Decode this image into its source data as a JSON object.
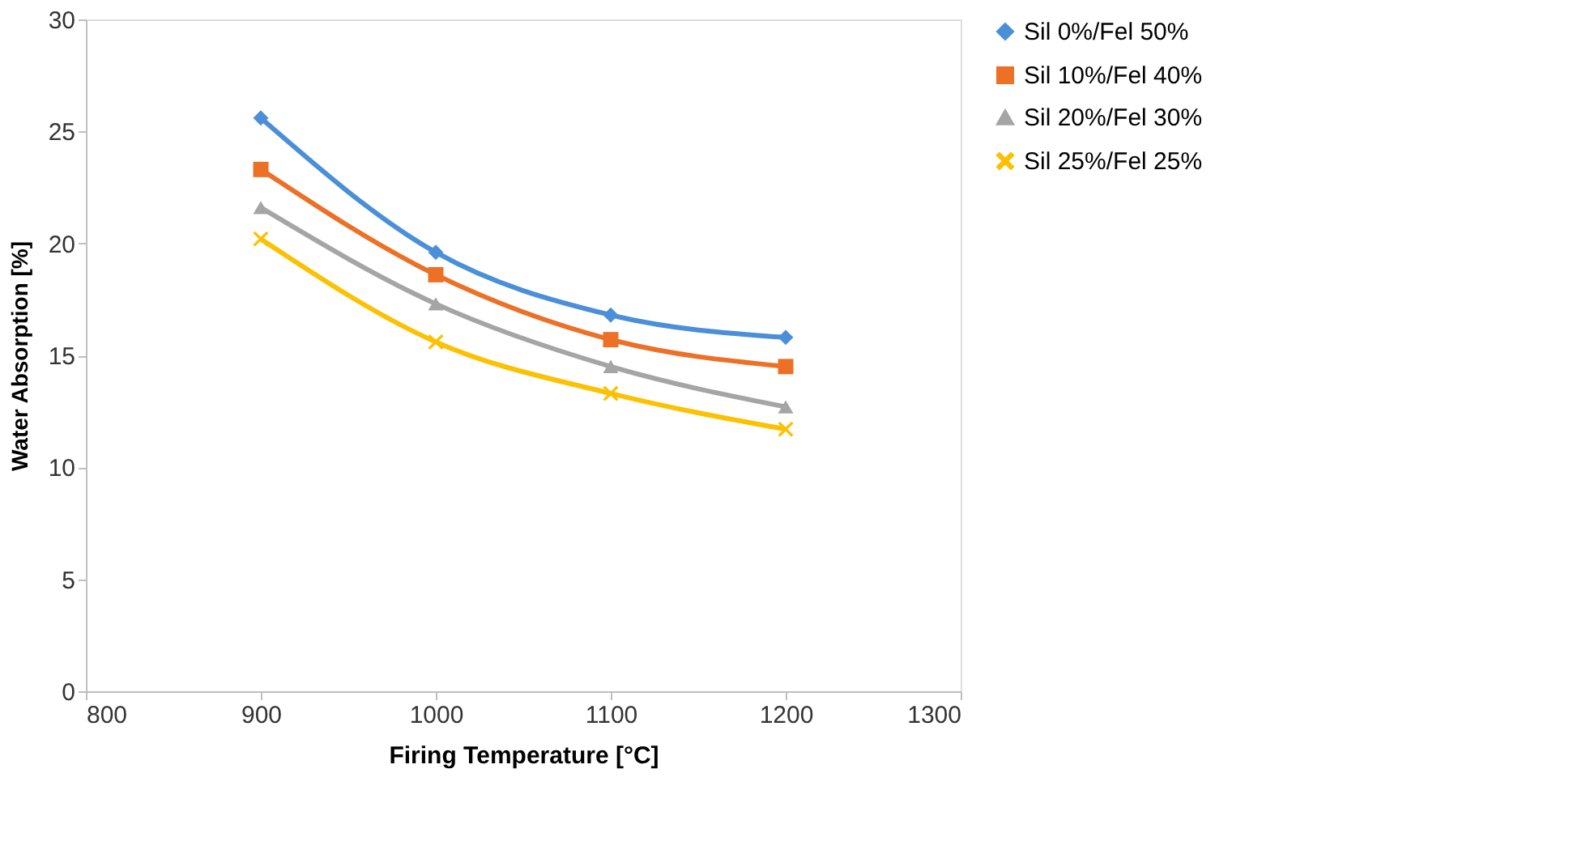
{
  "chart_data": {
    "type": "line",
    "xlabel": "Firing Temperature [°C]",
    "ylabel": "Water Absorption [%]",
    "x": [
      900,
      1000,
      1100,
      1200
    ],
    "series": [
      {
        "name": "Sil 0%/Fel 50%",
        "color": "#4a8fd8",
        "marker": "diamond",
        "values": [
          25.6,
          19.6,
          16.8,
          15.8
        ]
      },
      {
        "name": "Sil 10%/Fel 40%",
        "color": "#ed7027",
        "marker": "square",
        "values": [
          23.3,
          18.6,
          15.7,
          14.5
        ]
      },
      {
        "name": "Sil 20%/Fel 30%",
        "color": "#a5a5a5",
        "marker": "triangle",
        "values": [
          21.6,
          17.3,
          14.5,
          12.7
        ]
      },
      {
        "name": "Sil 25%/Fel 25%",
        "color": "#fbc102",
        "marker": "cross",
        "values": [
          20.2,
          15.6,
          13.3,
          11.7
        ]
      }
    ],
    "xlim": [
      800,
      1300
    ],
    "xticks": [
      800,
      900,
      1000,
      1100,
      1200,
      1300
    ],
    "ylim": [
      0,
      30
    ],
    "yticks": [
      0,
      5,
      10,
      15,
      20,
      25,
      30
    ],
    "grid": false,
    "legend": "right",
    "line_style": "solid"
  }
}
